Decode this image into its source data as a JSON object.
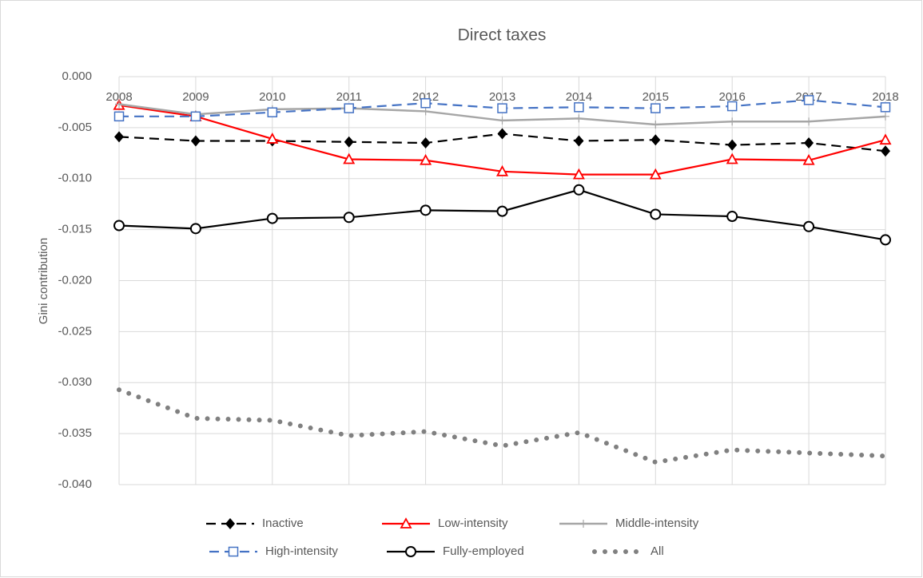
{
  "chart_data": {
    "type": "line",
    "title": "Direct taxes",
    "y_label": "Gini contribution",
    "categories": [
      "2008",
      "2009",
      "2010",
      "2011",
      "2012",
      "2013",
      "2014",
      "2015",
      "2016",
      "2017",
      "2018"
    ],
    "ylim": [
      -0.04,
      0
    ],
    "yticks": [
      {
        "value": 0,
        "label": "0.000"
      },
      {
        "value": -0.005,
        "label": "-0.005"
      },
      {
        "value": -0.01,
        "label": "-0.010"
      },
      {
        "value": -0.015,
        "label": "-0.015"
      },
      {
        "value": -0.02,
        "label": "-0.020"
      },
      {
        "value": -0.025,
        "label": "-0.025"
      },
      {
        "value": -0.03,
        "label": "-0.030"
      },
      {
        "value": -0.035,
        "label": "-0.035"
      },
      {
        "value": -0.04,
        "label": "-0.040"
      }
    ],
    "grid": true,
    "legend": "bottom",
    "series": [
      {
        "name": "Inactive",
        "color": "#000000",
        "marker": "diamond",
        "dash": "dashed",
        "values": [
          -0.0059,
          -0.0063,
          -0.0063,
          -0.0064,
          -0.0065,
          -0.0056,
          -0.0063,
          -0.0062,
          -0.0067,
          -0.0065,
          -0.0073
        ]
      },
      {
        "name": "Low-intensity",
        "color": "#ff0000",
        "marker": "triangle",
        "dash": "solid",
        "values": [
          -0.0028,
          -0.0039,
          -0.0061,
          -0.0081,
          -0.0082,
          -0.0093,
          -0.0096,
          -0.0096,
          -0.0081,
          -0.0082,
          -0.0062
        ]
      },
      {
        "name": "Middle-intensity",
        "color": "#a6a6a6",
        "marker": "plus",
        "dash": "solid",
        "values": [
          -0.0027,
          -0.0037,
          -0.0032,
          -0.0031,
          -0.0034,
          -0.0043,
          -0.0041,
          -0.0047,
          -0.0044,
          -0.0044,
          -0.0039
        ]
      },
      {
        "name": "High-intensity",
        "color": "#4472c4",
        "marker": "square",
        "dash": "dashed",
        "values": [
          -0.0039,
          -0.0039,
          -0.0035,
          -0.0031,
          -0.0026,
          -0.0031,
          -0.003,
          -0.0031,
          -0.0029,
          -0.0023,
          -0.003
        ]
      },
      {
        "name": "Fully-employed",
        "color": "#000000",
        "marker": "circle",
        "dash": "solid",
        "values": [
          -0.0146,
          -0.0149,
          -0.0139,
          -0.0138,
          -0.0131,
          -0.0132,
          -0.0111,
          -0.0135,
          -0.0137,
          -0.0147,
          -0.016
        ]
      },
      {
        "name": "All",
        "color": "#808080",
        "marker": "none",
        "dash": "dotted",
        "values": [
          -0.0307,
          -0.0335,
          -0.0337,
          -0.0352,
          -0.0348,
          -0.0362,
          -0.0349,
          -0.0378,
          -0.0366,
          -0.0369,
          -0.0372
        ]
      }
    ]
  }
}
